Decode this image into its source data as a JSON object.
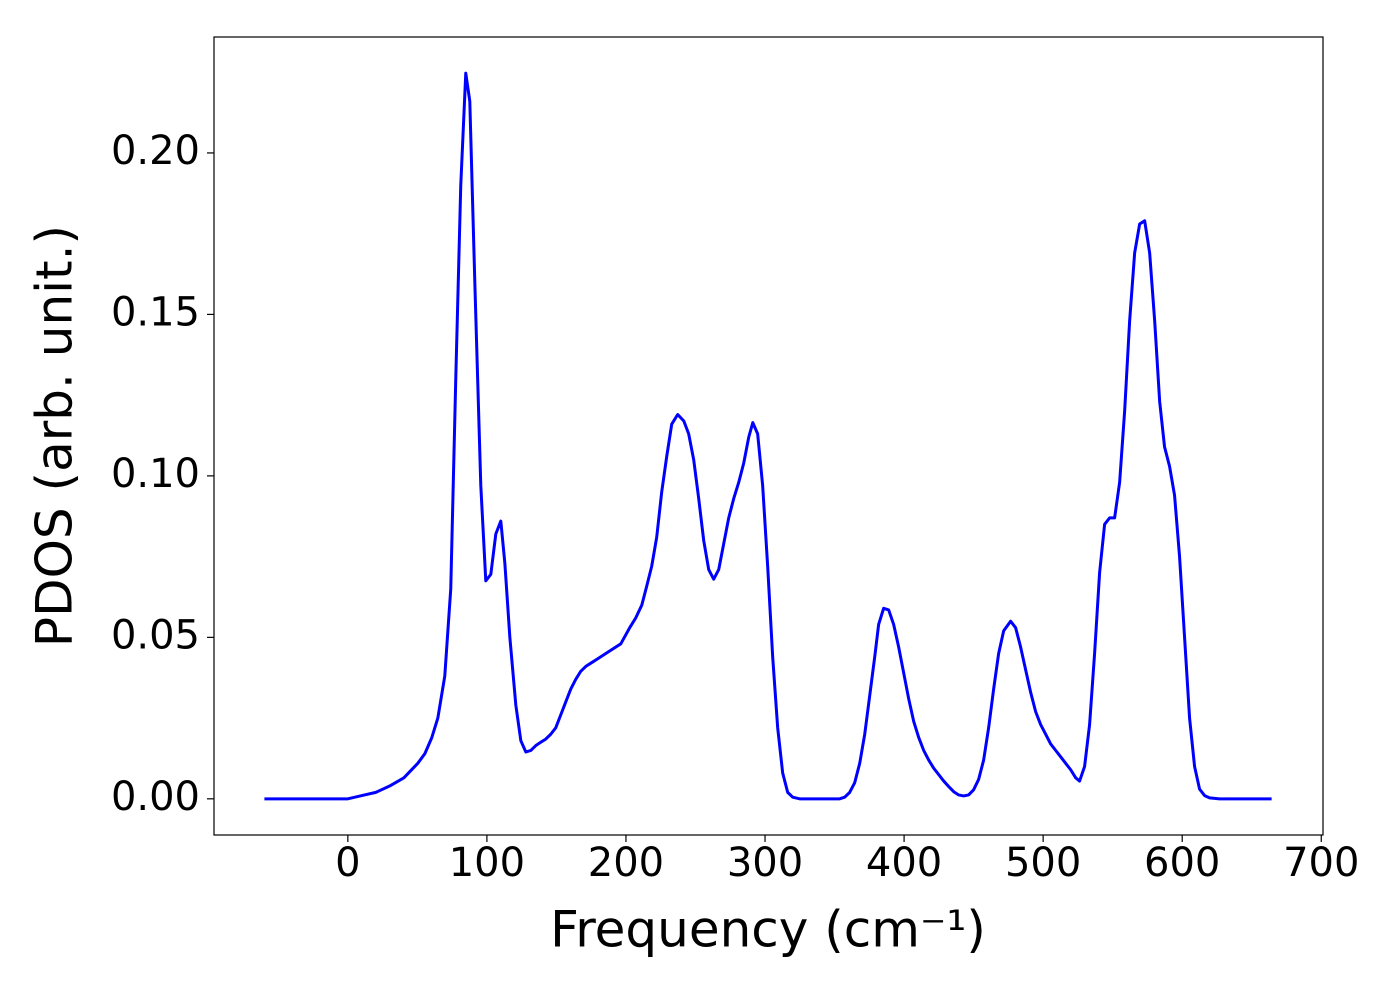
{
  "chart_data": {
    "type": "line",
    "xlabel": "Frequency (cm⁻¹)",
    "ylabel": "PDOS (arb. unit.)",
    "xlim": [
      -96.25,
      701.25
    ],
    "ylim": [
      -0.0112,
      0.2359
    ],
    "xticks": [
      0,
      100,
      200,
      300,
      400,
      500,
      600,
      700
    ],
    "yticks": [
      {
        "value": 0,
        "label": "0.00"
      },
      0.05,
      {
        "value": 0.1,
        "label": "0.10"
      },
      0.15,
      {
        "value": 0.2,
        "label": "0.20"
      }
    ],
    "grid": false,
    "x": [
      -60,
      0,
      10.1,
      20.1,
      30.2,
      40.3,
      50.3,
      55.4,
      60.4,
      64.7,
      69.7,
      74.0,
      77.6,
      81.2,
      84.8,
      87.7,
      91.3,
      95.6,
      99.2,
      102.8,
      106.4,
      110.0,
      112.9,
      116.5,
      120.8,
      124.4,
      128.0,
      131.6,
      135.2,
      138.7,
      142.3,
      145.9,
      149.5,
      153.1,
      156.7,
      160.3,
      163.9,
      167.5,
      171.1,
      174.7,
      178.3,
      181.9,
      189.1,
      196.3,
      202.7,
      207.0,
      211.4,
      215.0,
      218.5,
      222.1,
      225.7,
      229.3,
      232.9,
      237.2,
      241.6,
      245.1,
      248.7,
      252.3,
      255.9,
      259.5,
      263.1,
      266.7,
      270.3,
      273.9,
      277.5,
      281.1,
      284.7,
      288.3,
      291.2,
      294.7,
      298.3,
      301.9,
      305.5,
      309.1,
      312.7,
      316.3,
      319.9,
      324.9,
      353.7,
      357.3,
      360.9,
      364.5,
      368.1,
      371.7,
      375.3,
      378.9,
      381.7,
      385.3,
      388.9,
      392.5,
      396.1,
      399.7,
      403.3,
      406.9,
      410.5,
      414.1,
      417.7,
      421.3,
      424.9,
      428.5,
      432.1,
      435.7,
      439.3,
      442.8,
      446.4,
      450.0,
      453.6,
      457.2,
      460.8,
      464.4,
      468.0,
      471.6,
      476.6,
      480.2,
      483.8,
      487.4,
      491.0,
      494.6,
      498.2,
      501.8,
      505.4,
      509.0,
      512.6,
      516.2,
      519.8,
      523.4,
      526.2,
      529.8,
      533.4,
      537.0,
      540.6,
      544.2,
      547.8,
      551.4,
      555.0,
      558.6,
      562.2,
      565.8,
      569.4,
      573.0,
      576.6,
      580.2,
      583.8,
      587.3,
      590.9,
      594.5,
      598.1,
      601.7,
      605.3,
      608.9,
      612.5,
      616.1,
      619.7,
      626.9,
      664.3
    ],
    "series": [
      {
        "color": "#0000ff",
        "values": [
          0,
          0,
          0.001,
          0.002,
          0.004,
          0.0065,
          0.011,
          0.014,
          0.019,
          0.025,
          0.038,
          0.065,
          0.13,
          0.19,
          0.2247,
          0.216,
          0.16,
          0.097,
          0.0675,
          0.0695,
          0.082,
          0.086,
          0.073,
          0.05,
          0.029,
          0.018,
          0.0145,
          0.015,
          0.0165,
          0.0175,
          0.0185,
          0.02,
          0.022,
          0.026,
          0.03,
          0.034,
          0.037,
          0.0395,
          0.041,
          0.042,
          0.043,
          0.044,
          0.046,
          0.048,
          0.053,
          0.056,
          0.06,
          0.066,
          0.072,
          0.081,
          0.095,
          0.106,
          0.116,
          0.119,
          0.117,
          0.113,
          0.105,
          0.093,
          0.08,
          0.071,
          0.068,
          0.071,
          0.079,
          0.087,
          0.093,
          0.098,
          0.104,
          0.112,
          0.1165,
          0.113,
          0.097,
          0.072,
          0.044,
          0.022,
          0.008,
          0.002,
          0.0005,
          0,
          0,
          0.0005,
          0.002,
          0.005,
          0.011,
          0.02,
          0.032,
          0.044,
          0.054,
          0.059,
          0.0585,
          0.054,
          0.047,
          0.039,
          0.031,
          0.024,
          0.019,
          0.015,
          0.012,
          0.0095,
          0.0075,
          0.0055,
          0.0038,
          0.0022,
          0.0012,
          0.0009,
          0.0012,
          0.0028,
          0.006,
          0.012,
          0.022,
          0.034,
          0.045,
          0.052,
          0.055,
          0.053,
          0.047,
          0.04,
          0.033,
          0.027,
          0.023,
          0.02,
          0.017,
          0.015,
          0.013,
          0.011,
          0.009,
          0.0065,
          0.0055,
          0.01,
          0.023,
          0.045,
          0.07,
          0.085,
          0.087,
          0.087,
          0.098,
          0.12,
          0.148,
          0.169,
          0.178,
          0.179,
          0.169,
          0.148,
          0.123,
          0.109,
          0.103,
          0.094,
          0.075,
          0.05,
          0.025,
          0.01,
          0.003,
          0.001,
          0.0003,
          0,
          0
        ]
      }
    ]
  }
}
